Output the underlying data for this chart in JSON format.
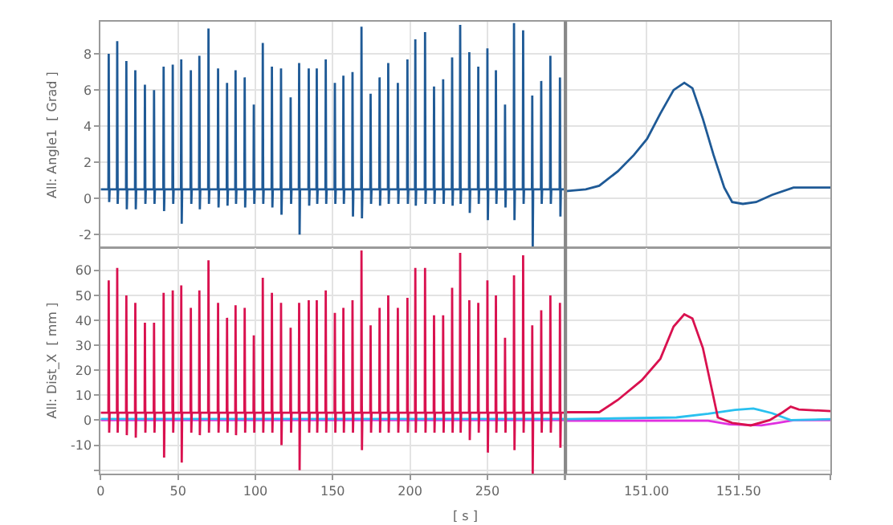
{
  "chart_data": [
    {
      "type": "line",
      "ylabel": "All: Angle1  [ Grad ]",
      "xlim": [
        0,
        300.5
      ],
      "xticks": [
        0,
        50,
        100,
        150,
        200,
        250,
        {
          "value": 300,
          "label": null
        }
      ],
      "ylim": [
        -2.7,
        9.8
      ],
      "yticks": [
        -2,
        0,
        2,
        4,
        6,
        8
      ],
      "grid": true,
      "tick_labels": "y",
      "marker": "none",
      "line_style": "solid",
      "series": [
        {
          "color": "#1f5a96",
          "x": [
            0,
            5.0,
            5.2,
            5.5,
            5.8,
            10.5,
            10.7,
            11.0,
            11.3,
            16.4,
            16.6,
            16.9,
            17.2,
            22.2,
            22.4,
            22.7,
            23.0,
            28.4,
            28.6,
            28.9,
            29.2,
            34.3,
            34.5,
            34.8,
            35.1,
            40.5,
            40.7,
            41.0,
            41.3,
            46.4,
            46.6,
            46.9,
            47.2,
            51.9,
            52.1,
            52.4,
            52.7,
            58.1,
            58.3,
            58.6,
            58.9,
            63.6,
            63.8,
            64.1,
            64.4,
            69.5,
            69.7,
            70.0,
            70.3,
            75.7,
            75.9,
            76.2,
            76.5,
            81.5,
            81.7,
            82.0,
            82.3,
            87.0,
            87.2,
            87.5,
            87.8,
            92.9,
            93.1,
            93.4,
            93.7,
            98.8,
            99.0,
            99.3,
            99.6,
            104.6,
            104.8,
            105.1,
            105.4,
            110.5,
            110.7,
            111.0,
            111.3,
            116.4,
            116.6,
            116.9,
            117.2,
            122.6,
            122.8,
            123.1,
            123.4,
            128.1,
            128.3,
            128.6,
            128.9,
            134.3,
            134.5,
            134.8,
            135.1,
            139.5,
            139.7,
            140.0,
            140.3,
            145.3,
            145.5,
            145.8,
            146.1,
            151.2,
            151.4,
            151.7,
            152.0,
            156.7,
            156.9,
            157.2,
            157.5,
            162.6,
            162.8,
            163.1,
            163.4,
            168.4,
            168.6,
            168.9,
            169.2,
            174.3,
            174.5,
            174.8,
            175.1,
            180.1,
            180.3,
            180.6,
            180.9,
            185.7,
            185.9,
            186.2,
            186.5,
            191.9,
            192.1,
            192.4,
            192.7,
            198.1,
            198.3,
            198.6,
            198.9,
            203.2,
            203.4,
            203.7,
            204.0,
            209.5,
            209.7,
            210.0,
            210.3,
            215.3,
            215.5,
            215.8,
            216.1,
            221.2,
            221.4,
            221.7,
            222.0,
            227.0,
            227.2,
            227.5,
            227.8,
            232.2,
            232.4,
            232.7,
            233.0,
            238.1,
            238.3,
            238.6,
            238.9,
            243.9,
            244.1,
            244.4,
            244.7,
            249.8,
            250.0,
            250.3,
            250.6,
            255.3,
            255.5,
            255.8,
            256.1,
            261.2,
            261.4,
            261.7,
            262.0,
            267.0,
            267.2,
            267.5,
            267.8,
            272.9,
            273.1,
            273.4,
            273.7,
            278.8,
            279.0,
            279.3,
            279.6,
            284.6,
            284.8,
            285.1,
            285.4,
            290.5,
            290.7,
            291.0,
            291.3,
            296.7,
            296.9,
            297.2,
            297.5,
            300.5
          ],
          "values": [
            0.5,
            0.5,
            8.0,
            -0.2,
            0.5,
            0.5,
            8.7,
            -0.3,
            0.5,
            0.5,
            7.6,
            -0.6,
            0.5,
            0.5,
            7.1,
            -0.6,
            0.5,
            0.5,
            6.3,
            -0.3,
            0.5,
            0.5,
            6.0,
            -0.3,
            0.5,
            0.5,
            7.3,
            -0.7,
            0.5,
            0.5,
            7.4,
            -0.3,
            0.5,
            0.5,
            7.7,
            -1.4,
            0.5,
            0.5,
            7.1,
            -0.3,
            0.5,
            0.5,
            7.9,
            -0.6,
            0.5,
            0.5,
            9.4,
            -0.3,
            0.5,
            0.5,
            7.2,
            -0.5,
            0.5,
            0.5,
            6.4,
            -0.4,
            0.5,
            0.5,
            7.1,
            -0.3,
            0.5,
            0.5,
            6.7,
            -0.5,
            0.5,
            0.5,
            5.2,
            -0.3,
            0.5,
            0.5,
            8.6,
            -0.3,
            0.5,
            0.5,
            7.3,
            -0.5,
            0.5,
            0.5,
            7.2,
            -0.9,
            0.5,
            0.5,
            5.6,
            -0.3,
            0.5,
            0.5,
            7.5,
            -2.0,
            0.5,
            0.5,
            7.2,
            -0.4,
            0.5,
            0.5,
            7.2,
            -0.3,
            0.5,
            0.5,
            7.7,
            -0.3,
            0.5,
            0.5,
            6.4,
            -0.3,
            0.5,
            0.5,
            6.8,
            -0.3,
            0.5,
            0.5,
            7.0,
            -1.0,
            0.5,
            0.5,
            9.5,
            -1.1,
            0.5,
            0.5,
            5.8,
            -0.3,
            0.5,
            0.5,
            6.7,
            -0.4,
            0.5,
            0.5,
            7.5,
            -0.3,
            0.5,
            0.5,
            6.4,
            -0.3,
            0.5,
            0.5,
            7.7,
            -0.3,
            0.5,
            0.5,
            8.8,
            -0.4,
            0.5,
            0.5,
            9.2,
            -0.3,
            0.5,
            0.5,
            6.2,
            -0.3,
            0.5,
            0.5,
            6.6,
            -0.3,
            0.5,
            0.5,
            7.8,
            -0.4,
            0.5,
            0.5,
            9.6,
            -0.3,
            0.5,
            0.5,
            8.1,
            -0.8,
            0.5,
            0.5,
            7.3,
            -0.3,
            0.5,
            0.5,
            8.3,
            -1.2,
            0.5,
            0.5,
            7.1,
            -0.3,
            0.5,
            0.5,
            5.2,
            -0.5,
            0.5,
            0.5,
            9.7,
            -1.2,
            0.5,
            0.5,
            9.3,
            -0.3,
            0.5,
            0.5,
            5.7,
            -2.7,
            0.5,
            0.5,
            6.5,
            -0.3,
            0.5,
            0.5,
            7.9,
            -0.3,
            0.5,
            0.5,
            6.7,
            -1.0,
            0.5,
            0.5
          ]
        }
      ]
    },
    {
      "type": "line",
      "xlim": [
        150.56,
        152.0
      ],
      "xticks": [
        151.0,
        151.5
      ],
      "ylim": [
        -2.7,
        9.8
      ],
      "yticks": [
        -2,
        0,
        2,
        4,
        6,
        8
      ],
      "grid": true,
      "tick_labels": false,
      "marker": "none",
      "line_style": "solid",
      "series": [
        {
          "color": "#1f5a96",
          "x": [
            150.56,
            150.67,
            150.743,
            150.844,
            150.931,
            151.003,
            151.075,
            151.147,
            151.205,
            151.249,
            151.306,
            151.364,
            151.422,
            151.465,
            151.523,
            151.595,
            151.682,
            151.798,
            152.0
          ],
          "values": [
            0.4,
            0.5,
            0.7,
            1.5,
            2.4,
            3.3,
            4.7,
            6.0,
            6.4,
            6.1,
            4.4,
            2.4,
            0.6,
            -0.2,
            -0.3,
            -0.2,
            0.2,
            0.6,
            0.6
          ]
        }
      ]
    },
    {
      "type": "line",
      "ylabel": "All: Dist_X  [ mm ]",
      "xlabel": "[ s ]",
      "xlim": [
        0,
        300.5
      ],
      "xticks": [
        0,
        50,
        100,
        150,
        200,
        250,
        {
          "value": 300,
          "label": null
        }
      ],
      "ylim": [
        -21.4,
        68.8
      ],
      "yticks": [
        {
          "value": -20,
          "label": null
        },
        -10,
        0,
        10,
        20,
        30,
        40,
        50,
        60
      ],
      "grid": true,
      "marker": "none",
      "line_style": "solid",
      "series": [
        {
          "color": "#e030e0",
          "x": [
            0,
            300.5
          ],
          "values": [
            0,
            0
          ]
        },
        {
          "color": "#29c0ef",
          "x": [
            0,
            300.5
          ],
          "values": [
            0.5,
            0.5
          ]
        },
        {
          "color": "#d9114f",
          "x": [
            0,
            5.0,
            5.2,
            5.5,
            5.8,
            10.5,
            10.7,
            11.0,
            11.3,
            16.4,
            16.6,
            16.9,
            17.2,
            22.2,
            22.4,
            22.7,
            23.0,
            28.4,
            28.6,
            28.9,
            29.2,
            34.3,
            34.5,
            34.8,
            35.1,
            40.5,
            40.7,
            41.0,
            41.3,
            46.4,
            46.6,
            46.9,
            47.2,
            51.9,
            52.1,
            52.4,
            52.7,
            58.1,
            58.3,
            58.6,
            58.9,
            63.6,
            63.8,
            64.1,
            64.4,
            69.5,
            69.7,
            70.0,
            70.3,
            75.7,
            75.9,
            76.2,
            76.5,
            81.5,
            81.7,
            82.0,
            82.3,
            87.0,
            87.2,
            87.5,
            87.8,
            92.9,
            93.1,
            93.4,
            93.7,
            98.8,
            99.0,
            99.3,
            99.6,
            104.6,
            104.8,
            105.1,
            105.4,
            110.5,
            110.7,
            111.0,
            111.3,
            116.4,
            116.6,
            116.9,
            117.2,
            122.6,
            122.8,
            123.1,
            123.4,
            128.1,
            128.3,
            128.6,
            128.9,
            134.3,
            134.5,
            134.8,
            135.1,
            139.5,
            139.7,
            140.0,
            140.3,
            145.3,
            145.5,
            145.8,
            146.1,
            151.2,
            151.4,
            151.7,
            152.0,
            156.7,
            156.9,
            157.2,
            157.5,
            162.6,
            162.8,
            163.1,
            163.4,
            168.4,
            168.6,
            168.9,
            169.2,
            174.3,
            174.5,
            174.8,
            175.1,
            180.1,
            180.3,
            180.6,
            180.9,
            185.7,
            185.9,
            186.2,
            186.5,
            191.9,
            192.1,
            192.4,
            192.7,
            198.1,
            198.3,
            198.6,
            198.9,
            203.2,
            203.4,
            203.7,
            204.0,
            209.5,
            209.7,
            210.0,
            210.3,
            215.3,
            215.5,
            215.8,
            216.1,
            221.2,
            221.4,
            221.7,
            222.0,
            227.0,
            227.2,
            227.5,
            227.8,
            232.2,
            232.4,
            232.7,
            233.0,
            238.1,
            238.3,
            238.6,
            238.9,
            243.9,
            244.1,
            244.4,
            244.7,
            249.8,
            250.0,
            250.3,
            250.6,
            255.3,
            255.5,
            255.8,
            256.1,
            261.2,
            261.4,
            261.7,
            262.0,
            267.0,
            267.2,
            267.5,
            267.8,
            272.9,
            273.1,
            273.4,
            273.7,
            278.8,
            279.0,
            279.3,
            279.6,
            284.6,
            284.8,
            285.1,
            285.4,
            290.5,
            290.7,
            291.0,
            291.3,
            296.7,
            296.9,
            297.2,
            297.5,
            300.5
          ],
          "values": [
            3,
            3,
            56,
            -5,
            3,
            3,
            61,
            -5,
            3,
            3,
            50,
            -6,
            3,
            3,
            47,
            -7,
            3,
            3,
            39,
            -5,
            3,
            3,
            39,
            -5,
            3,
            3,
            51,
            -15,
            3,
            3,
            52,
            -5,
            3,
            3,
            54,
            -17,
            3,
            3,
            45,
            -5,
            3,
            3,
            52,
            -6,
            3,
            3,
            64,
            -5,
            3,
            3,
            47,
            -5,
            3,
            3,
            41,
            -5,
            3,
            3,
            46,
            -6,
            3,
            3,
            45,
            -5,
            3,
            3,
            34,
            -5,
            3,
            3,
            57,
            -5,
            3,
            3,
            51,
            -5,
            3,
            3,
            47,
            -10,
            3,
            3,
            37,
            -5,
            3,
            3,
            47,
            -20,
            3,
            3,
            48,
            -5,
            3,
            3,
            48,
            -5,
            3,
            3,
            52,
            -5,
            3,
            3,
            43,
            -5,
            3,
            3,
            45,
            -5,
            3,
            3,
            48,
            -5,
            3,
            3,
            68,
            -12,
            3,
            3,
            38,
            -5,
            3,
            3,
            45,
            -5,
            3,
            3,
            50,
            -5,
            3,
            3,
            45,
            -5,
            3,
            3,
            49,
            -5,
            3,
            3,
            61,
            -5,
            3,
            3,
            61,
            -5,
            3,
            3,
            42,
            -5,
            3,
            3,
            42,
            -5,
            3,
            3,
            53,
            -5,
            3,
            3,
            67,
            -5,
            3,
            3,
            48,
            -8,
            3,
            3,
            47,
            -5,
            3,
            3,
            56,
            -13,
            3,
            3,
            50,
            -5,
            3,
            3,
            33,
            -5,
            3,
            3,
            58,
            -12,
            3,
            3,
            66,
            -5,
            3,
            3,
            38,
            -21.4,
            3,
            3,
            44,
            -5,
            3,
            3,
            50,
            -5,
            3,
            3,
            47,
            -11,
            3,
            3
          ]
        }
      ]
    },
    {
      "type": "line",
      "xlim": [
        150.56,
        152.0
      ],
      "xticks": [
        {
          "value": 150.56,
          "label": null
        },
        {
          "value": 151.0,
          "label": "151.00"
        },
        {
          "value": 151.5,
          "label": "151.50"
        },
        {
          "value": 152.0,
          "label": null
        }
      ],
      "ylim": [
        -21.4,
        68.8
      ],
      "yticks": [
        -20,
        -10,
        0,
        10,
        20,
        30,
        40,
        50,
        60
      ],
      "grid": true,
      "tick_labels": "x",
      "marker": "none",
      "line_style": "solid",
      "series": [
        {
          "color": "#e030e0",
          "x": [
            150.56,
            151.335,
            151.451,
            151.624,
            151.71,
            151.8,
            152.0
          ],
          "values": [
            -0.2,
            -0.2,
            -1.7,
            -2.1,
            -1.1,
            0,
            0
          ]
        },
        {
          "color": "#29c0ef",
          "x": [
            150.56,
            151.162,
            151.335,
            151.48,
            151.58,
            151.682,
            151.783,
            152.0
          ],
          "values": [
            0.4,
            1.1,
            2.6,
            4.1,
            4.7,
            2.8,
            0,
            0.4
          ]
        },
        {
          "color": "#d9114f",
          "x": [
            150.56,
            150.743,
            150.844,
            150.974,
            151.075,
            151.147,
            151.205,
            151.249,
            151.306,
            151.35,
            151.387,
            151.465,
            151.566,
            151.668,
            151.74,
            151.783,
            151.827,
            152.0
          ],
          "values": [
            3.2,
            3.2,
            8.1,
            16,
            24.6,
            37.5,
            42.4,
            40.7,
            28.9,
            13.9,
            1.1,
            -1.1,
            -2.1,
            0,
            3.2,
            5.4,
            4.3,
            3.6
          ]
        }
      ]
    }
  ]
}
